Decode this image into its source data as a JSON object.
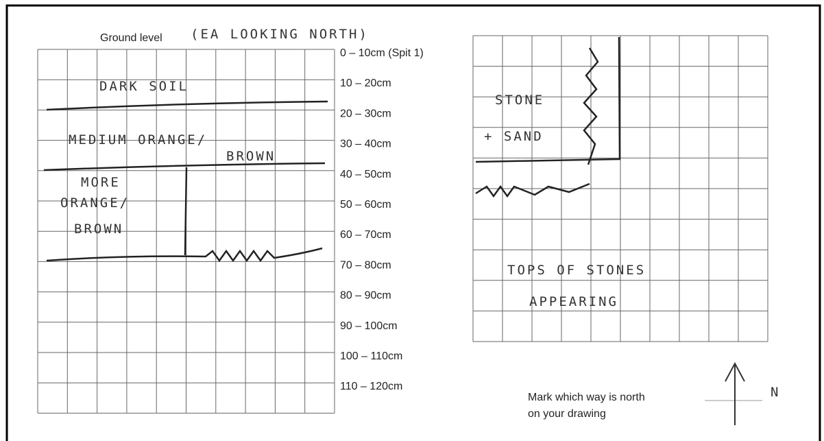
{
  "header": {
    "label": "Ground level",
    "note": "(EA LOOKING NORTH)"
  },
  "depths": [
    "0 – 10cm (Spit 1)",
    "10 – 20cm",
    "20 – 30cm",
    "30 – 40cm",
    "40 – 50cm",
    "50 – 60cm",
    "60 – 70cm",
    "70 – 80cm",
    "80 – 90cm",
    "90 – 100cm",
    "100 – 110cm",
    "110 – 120cm"
  ],
  "left_section": {
    "layers": [
      "DARK SOIL",
      "MEDIUM ORANGE/",
      "BROWN",
      "MORE",
      "ORANGE/",
      "BROWN"
    ]
  },
  "right_section": {
    "layers": [
      "STONE",
      "+ SAND",
      "TOPS OF STONES",
      "APPEARING"
    ]
  },
  "north": {
    "instruction": [
      "Mark which way is north",
      "on your drawing"
    ],
    "letter": "N"
  }
}
